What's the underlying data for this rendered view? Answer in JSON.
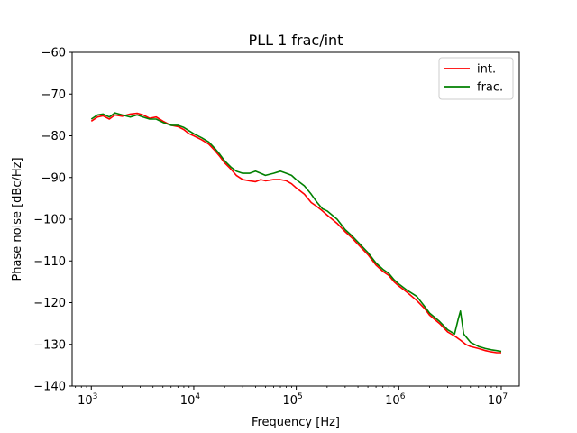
{
  "chart_data": {
    "type": "line",
    "title": "PLL 1 frac/int",
    "xlabel": "Frequency [Hz]",
    "ylabel": "Phase noise [dBc/Hz]",
    "x_scale": "log",
    "xlim": [
      650,
      15000000
    ],
    "ylim": [
      -140,
      -60
    ],
    "x_ticks": [
      {
        "value": 1000,
        "base": "10",
        "exp": "3"
      },
      {
        "value": 10000,
        "base": "10",
        "exp": "4"
      },
      {
        "value": 100000,
        "base": "10",
        "exp": "5"
      },
      {
        "value": 1000000,
        "base": "10",
        "exp": "6"
      },
      {
        "value": 10000000,
        "base": "10",
        "exp": "7"
      }
    ],
    "y_ticks": [
      -60,
      -70,
      -80,
      -90,
      -100,
      -110,
      -120,
      -130,
      -140
    ],
    "y_tick_labels": [
      "−60",
      "−70",
      "−80",
      "−90",
      "−100",
      "−110",
      "−120",
      "−130",
      "−140"
    ],
    "grid": false,
    "legend_position": "top-right",
    "series": [
      {
        "name": "int.",
        "color": "#ff0000",
        "x": [
          1000,
          1150,
          1300,
          1500,
          1700,
          2000,
          2400,
          2800,
          3200,
          3700,
          4300,
          5000,
          6000,
          7000,
          8000,
          9000,
          10000,
          12000,
          14000,
          16000,
          18000,
          20000,
          23000,
          26000,
          30000,
          35000,
          40000,
          45000,
          50000,
          60000,
          70000,
          80000,
          90000,
          100000,
          120000,
          140000,
          160000,
          180000,
          200000,
          250000,
          300000,
          350000,
          400000,
          500000,
          600000,
          700000,
          800000,
          900000,
          1000000,
          1200000,
          1500000,
          1800000,
          2000000,
          2500000,
          3000000,
          3500000,
          4000000,
          4500000,
          5000000,
          6000000,
          7000000,
          8000000,
          9000000,
          10000000
        ],
        "y": [
          -76.5,
          -75.5,
          -75.2,
          -76.0,
          -75.0,
          -75.3,
          -74.8,
          -74.6,
          -75.0,
          -75.8,
          -75.5,
          -76.5,
          -77.5,
          -77.8,
          -78.5,
          -79.5,
          -80.0,
          -81.0,
          -82.0,
          -83.5,
          -85.0,
          -86.5,
          -88.0,
          -89.5,
          -90.5,
          -90.8,
          -91.0,
          -90.5,
          -90.8,
          -90.5,
          -90.5,
          -90.8,
          -91.5,
          -92.5,
          -94.0,
          -96.0,
          -97.0,
          -98.0,
          -99.0,
          -101.0,
          -103.0,
          -104.5,
          -106.0,
          -108.5,
          -111.0,
          -112.5,
          -113.5,
          -115.0,
          -116.0,
          -117.5,
          -119.5,
          -121.5,
          -123.0,
          -125.0,
          -127.0,
          -128.0,
          -129.0,
          -130.0,
          -130.5,
          -131.0,
          -131.5,
          -131.8,
          -132.0,
          -132.0
        ]
      },
      {
        "name": "frac.",
        "color": "#008000",
        "x": [
          1000,
          1150,
          1300,
          1500,
          1700,
          2000,
          2400,
          2800,
          3200,
          3700,
          4300,
          5000,
          6000,
          7000,
          8000,
          9000,
          10000,
          12000,
          14000,
          16000,
          18000,
          20000,
          23000,
          26000,
          30000,
          35000,
          40000,
          45000,
          50000,
          60000,
          70000,
          80000,
          90000,
          100000,
          120000,
          140000,
          160000,
          180000,
          200000,
          250000,
          300000,
          350000,
          400000,
          500000,
          600000,
          700000,
          800000,
          900000,
          1000000,
          1200000,
          1500000,
          1800000,
          2000000,
          2500000,
          3000000,
          3500000,
          3800000,
          4000000,
          4300000,
          5000000,
          6000000,
          7000000,
          8000000,
          9000000,
          10000000
        ],
        "y": [
          -76.0,
          -75.0,
          -74.8,
          -75.5,
          -74.5,
          -75.0,
          -75.5,
          -75.0,
          -75.5,
          -76.0,
          -76.0,
          -76.8,
          -77.5,
          -77.5,
          -78.0,
          -78.8,
          -79.5,
          -80.5,
          -81.5,
          -83.0,
          -84.5,
          -86.0,
          -87.5,
          -88.5,
          -89.0,
          -89.0,
          -88.5,
          -89.0,
          -89.5,
          -89.0,
          -88.5,
          -89.0,
          -89.5,
          -90.5,
          -92.0,
          -94.0,
          -96.0,
          -97.5,
          -98.0,
          -100.0,
          -102.5,
          -104.0,
          -105.5,
          -108.0,
          -110.5,
          -112.0,
          -113.0,
          -114.5,
          -115.5,
          -117.0,
          -118.5,
          -121.0,
          -122.5,
          -124.5,
          -126.5,
          -127.5,
          -124.0,
          -122.0,
          -127.5,
          -129.5,
          -130.5,
          -131.0,
          -131.3,
          -131.5,
          -131.7
        ]
      }
    ]
  }
}
